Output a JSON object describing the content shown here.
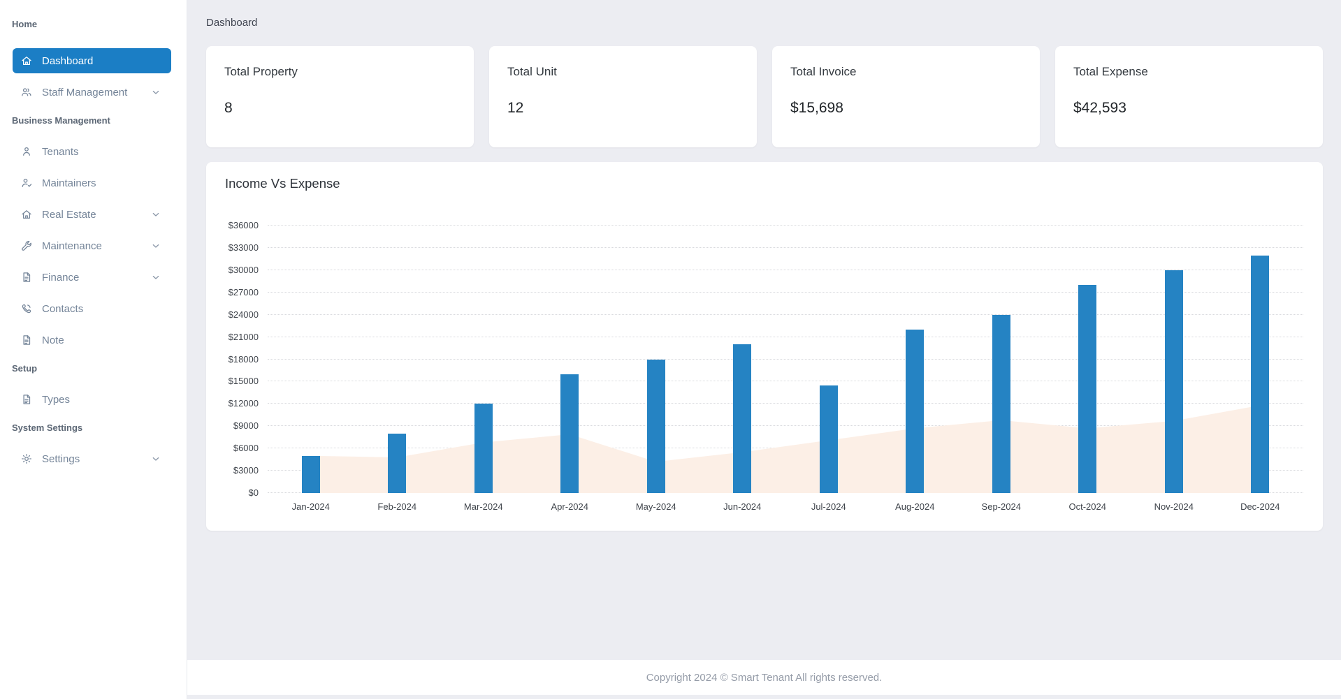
{
  "header": {
    "breadcrumb": "Dashboard"
  },
  "sidebar": {
    "sections": [
      {
        "label": "Home",
        "items": [
          {
            "label": "Dashboard",
            "icon": "home-icon",
            "active": true,
            "chevron": false
          },
          {
            "label": "Staff Management",
            "icon": "users-icon",
            "active": false,
            "chevron": true
          }
        ]
      },
      {
        "label": "Business Management",
        "items": [
          {
            "label": "Tenants",
            "icon": "user-icon",
            "active": false,
            "chevron": false
          },
          {
            "label": "Maintainers",
            "icon": "user-check-icon",
            "active": false,
            "chevron": false
          },
          {
            "label": "Real Estate",
            "icon": "home-icon",
            "active": false,
            "chevron": true
          },
          {
            "label": "Maintenance",
            "icon": "wrench-icon",
            "active": false,
            "chevron": true
          },
          {
            "label": "Finance",
            "icon": "file-icon",
            "active": false,
            "chevron": true
          },
          {
            "label": "Contacts",
            "icon": "phone-icon",
            "active": false,
            "chevron": false
          },
          {
            "label": "Note",
            "icon": "file-icon",
            "active": false,
            "chevron": false
          }
        ]
      },
      {
        "label": "Setup",
        "items": [
          {
            "label": "Types",
            "icon": "file-icon",
            "active": false,
            "chevron": false
          }
        ]
      },
      {
        "label": "System Settings",
        "items": [
          {
            "label": "Settings",
            "icon": "gear-icon",
            "active": false,
            "chevron": true
          }
        ]
      }
    ]
  },
  "cards": [
    {
      "title": "Total Property",
      "value": "8"
    },
    {
      "title": "Total Unit",
      "value": "12"
    },
    {
      "title": "Total Invoice",
      "value": "$15,698"
    },
    {
      "title": "Total Expense",
      "value": "$42,593"
    }
  ],
  "chart_data": {
    "type": "bar",
    "title": "Income Vs Expense",
    "categories": [
      "Jan-2024",
      "Feb-2024",
      "Mar-2024",
      "Apr-2024",
      "May-2024",
      "Jun-2024",
      "Jul-2024",
      "Aug-2024",
      "Sep-2024",
      "Oct-2024",
      "Nov-2024",
      "Dec-2024"
    ],
    "series": [
      {
        "name": "Income",
        "render": "bar",
        "color": "#2583c3",
        "values": [
          5000,
          8000,
          12000,
          16000,
          18000,
          20000,
          14500,
          22000,
          24000,
          28000,
          30000,
          32000
        ]
      },
      {
        "name": "Expense",
        "render": "area",
        "color": "#fcefe6",
        "values": [
          5000,
          4800,
          6800,
          7900,
          4200,
          5500,
          7100,
          8700,
          9800,
          8700,
          9700,
          11800
        ]
      }
    ],
    "xlabel": "",
    "ylabel": "",
    "ylim": [
      0,
      36000
    ],
    "ytick_step": 3000,
    "ytick_prefix": "$",
    "grid": "horizontal-dotted",
    "legend": "none"
  },
  "footer": {
    "copyright": "Copyright 2024 © Smart Tenant All rights reserved."
  },
  "colors": {
    "sidebar_active_bg": "#1b7ec5",
    "bar": "#2583c3",
    "area_fill": "#fcefe6",
    "content_bg": "#ecedf2"
  }
}
